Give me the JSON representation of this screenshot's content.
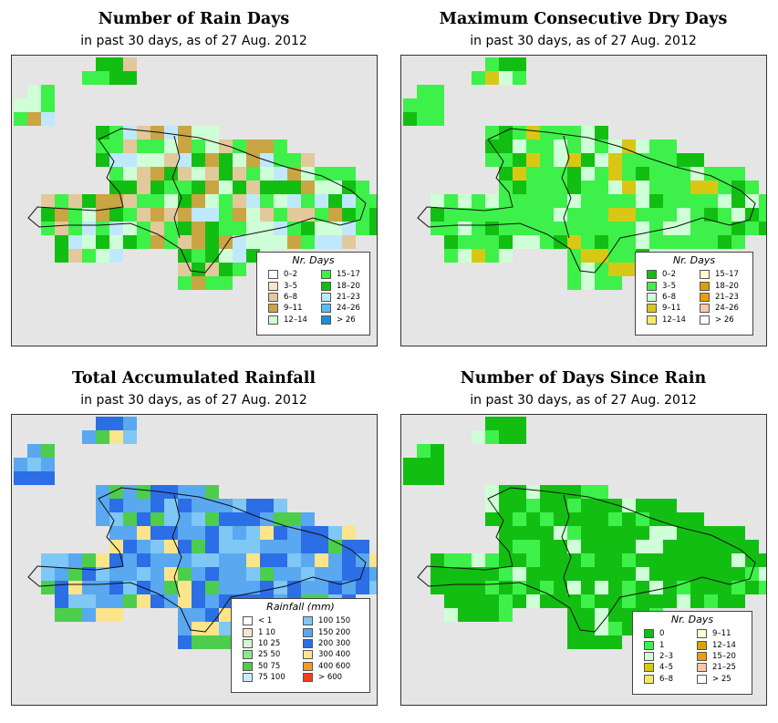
{
  "panels": [
    {
      "id": "rain_days",
      "title": "Number of Rain Days",
      "subtitle": "in past 30 days, as of  27 Aug. 2012",
      "legend": {
        "title": "Nr. Days",
        "items": [
          {
            "label": "0–2",
            "color": "#ffffff"
          },
          {
            "label": "3–5",
            "color": "#f5e6cc"
          },
          {
            "label": "6–8",
            "color": "#e2c99b"
          },
          {
            "label": "9–11",
            "color": "#c9a544"
          },
          {
            "label": "12–14",
            "color": "#cfffd6"
          },
          {
            "label": "15–17",
            "color": "#3ef04a"
          },
          {
            "label": "18–20",
            "color": "#13be13"
          },
          {
            "label": "21–23",
            "color": "#bfe9fb"
          },
          {
            "label": "24–26",
            "color": "#59bdf5"
          },
          {
            "label": "> 26",
            "color": "#1e8fd6"
          }
        ]
      }
    },
    {
      "id": "max_dry_days",
      "title": "Maximum Consecutive Dry Days",
      "subtitle": "in past 30 days, as of  27 Aug. 2012",
      "legend": {
        "title": "Nr. Days",
        "items": [
          {
            "label": "0–2",
            "color": "#13be13"
          },
          {
            "label": "3–5",
            "color": "#3ef04a"
          },
          {
            "label": "6–8",
            "color": "#cfffd6"
          },
          {
            "label": "9–11",
            "color": "#d8c815"
          },
          {
            "label": "12–14",
            "color": "#f5e76a"
          },
          {
            "label": "15–17",
            "color": "#fefcd0"
          },
          {
            "label": "18–20",
            "color": "#d8a010"
          },
          {
            "label": "21–23",
            "color": "#f09a10"
          },
          {
            "label": "24–26",
            "color": "#fcc6a5"
          },
          {
            "label": "> 26",
            "color": "#ffffff"
          }
        ]
      }
    },
    {
      "id": "total_rainfall",
      "title": "Total Accumulated Rainfall",
      "subtitle": "in past 30 days, as of  27 Aug. 2012",
      "legend": {
        "title": "Rainfall (mm)",
        "items": [
          {
            "label": "< 1",
            "color": "#ffffff"
          },
          {
            "label": "1   10",
            "color": "#f5e6cc"
          },
          {
            "label": "10   25",
            "color": "#d6f5d0"
          },
          {
            "label": "25   50",
            "color": "#8fe68c"
          },
          {
            "label": "50   75",
            "color": "#4ccd4c"
          },
          {
            "label": "75   100",
            "color": "#c6ecff"
          },
          {
            "label": "100   150",
            "color": "#7fc7f5"
          },
          {
            "label": "150   200",
            "color": "#59a8f0"
          },
          {
            "label": "200   300",
            "color": "#2b6ee6"
          },
          {
            "label": "300   400",
            "color": "#fce48a"
          },
          {
            "label": "400   600",
            "color": "#f59a1a"
          },
          {
            "label": "> 600",
            "color": "#f0401a"
          }
        ]
      }
    },
    {
      "id": "days_since_rain",
      "title": "Number of Days Since Rain",
      "subtitle": "in past 30 days, as of  27 Aug. 2012",
      "legend": {
        "title": "Nr. Days",
        "items": [
          {
            "label": "0",
            "color": "#13be13"
          },
          {
            "label": "1",
            "color": "#3ef04a"
          },
          {
            "label": "2–3",
            "color": "#cfffd6"
          },
          {
            "label": "4–5",
            "color": "#d8c815"
          },
          {
            "label": "6–8",
            "color": "#f5e76a"
          },
          {
            "label": "9–11",
            "color": "#fefcd0"
          },
          {
            "label": "12–14",
            "color": "#d8a010"
          },
          {
            "label": "15–20",
            "color": "#f09a10"
          },
          {
            "label": "21–25",
            "color": "#fcc6a5"
          },
          {
            "label": "> 25",
            "color": "#ffffff"
          }
        ]
      }
    }
  ]
}
